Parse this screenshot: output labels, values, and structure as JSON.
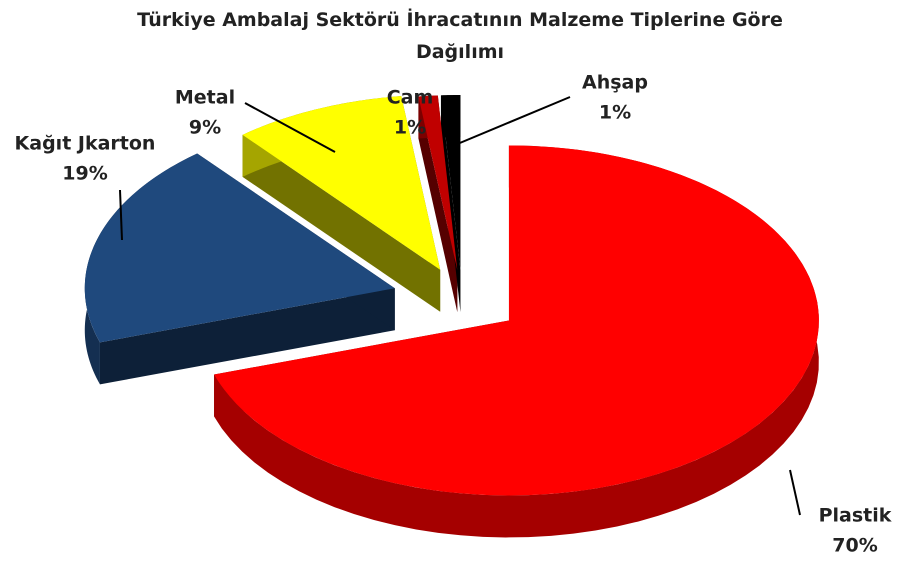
{
  "chart_data": {
    "type": "pie",
    "title": "Türkiye Ambalaj Sektörü İhracatının Malzeme Tiplerine Göre Dağılımı",
    "categories": [
      "Plastik",
      "Kağıt Jkarton",
      "Metal",
      "Cam",
      "Ahşap"
    ],
    "values": [
      70,
      19,
      9,
      1,
      1
    ],
    "value_labels": [
      "70%",
      "19%",
      "9%",
      "1%",
      "1%"
    ],
    "colors": [
      "#ff0000",
      "#1f497d",
      "#ffff00",
      "#c00000",
      "#000000"
    ]
  }
}
